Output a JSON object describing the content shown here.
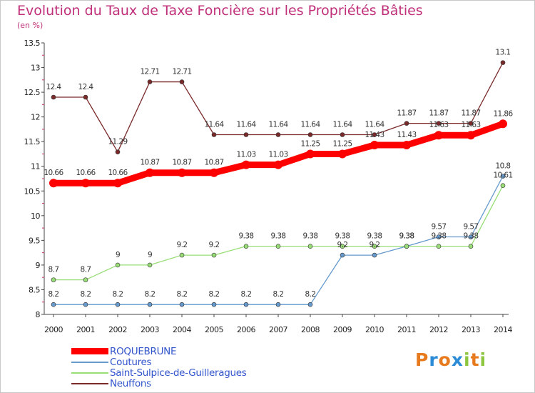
{
  "title": "Evolution du Taux de Taxe Foncière sur les Propriétés Bâties",
  "subtitle": "(en %)",
  "logo": {
    "text": "Proxiti",
    "letters": [
      "P",
      "r",
      "o",
      "x",
      "i",
      "t",
      "i"
    ],
    "colors": [
      "#e87a1e",
      "#2b8bd6",
      "#e87a1e",
      "#2b8bd6",
      "#8cc63f",
      "#e87a1e",
      "#8cc63f"
    ]
  },
  "chart_data": {
    "type": "line",
    "title": "Evolution du Taux de Taxe Foncière sur les Propriétés Bâties",
    "ylabel": "(en %)",
    "xlabel": "",
    "x": [
      "2000",
      "2001",
      "2002",
      "2003",
      "2004",
      "2005",
      "2006",
      "2007",
      "2008",
      "2009",
      "2010",
      "2011",
      "2012",
      "2013",
      "2014"
    ],
    "ylim": [
      8,
      13.5
    ],
    "yticks": [
      "8",
      "8.5",
      "9",
      "9.5",
      "10",
      "10.5",
      "11",
      "11.5",
      "12",
      "12.5",
      "13",
      "13.5"
    ],
    "grid": false,
    "legend_position": "bottom-left",
    "series": [
      {
        "name": "ROQUEBRUNE",
        "color": "#ff0000",
        "values": [
          10.66,
          10.66,
          10.66,
          10.87,
          10.87,
          10.87,
          11.03,
          11.03,
          11.25,
          11.25,
          11.43,
          11.43,
          11.63,
          11.63,
          11.86
        ],
        "labels": [
          "10.66",
          "10.66",
          "10.66",
          "10.87",
          "10.87",
          "10.87",
          "11.03",
          "11.03",
          "11.25",
          "11.25",
          "11.43",
          "11.43",
          "11.63",
          "11.63",
          "11.86"
        ]
      },
      {
        "name": "Coutures",
        "color": "#6699cc",
        "values": [
          8.2,
          8.2,
          8.2,
          8.2,
          8.2,
          8.2,
          8.2,
          8.2,
          8.2,
          9.2,
          9.2,
          9.38,
          9.57,
          9.57,
          10.8
        ],
        "labels": [
          "8.2",
          "8.2",
          "8.2",
          "8.2",
          "8.2",
          "8.2",
          "8.2",
          "8.2",
          "8.2",
          "9.2",
          "9.2",
          "9.38",
          "9.57",
          "9.57",
          "10.8"
        ]
      },
      {
        "name": "Saint-Sulpice-de-Guilleragues",
        "color": "#99dd77",
        "values": [
          8.7,
          8.7,
          9,
          9,
          9.2,
          9.2,
          9.38,
          9.38,
          9.38,
          9.38,
          9.38,
          9.38,
          9.38,
          9.38,
          10.61
        ],
        "labels": [
          "8.7",
          "8.7",
          "9",
          "9",
          "9.2",
          "9.2",
          "9.38",
          "9.38",
          "9.38",
          "9.38",
          "9.38",
          "9.38",
          "9.38",
          "9.38",
          "10.61"
        ]
      },
      {
        "name": "Neuffons",
        "color": "#7a2a2a",
        "values": [
          12.4,
          12.4,
          11.29,
          12.71,
          12.71,
          11.64,
          11.64,
          11.64,
          11.64,
          11.64,
          11.64,
          11.87,
          11.87,
          11.87,
          13.1
        ],
        "labels": [
          "12.4",
          "12.4",
          "11.29",
          "12.71",
          "12.71",
          "11.64",
          "11.64",
          "11.64",
          "11.64",
          "11.64",
          "11.64",
          "11.87",
          "11.87",
          "11.87",
          "13.1"
        ]
      }
    ]
  }
}
